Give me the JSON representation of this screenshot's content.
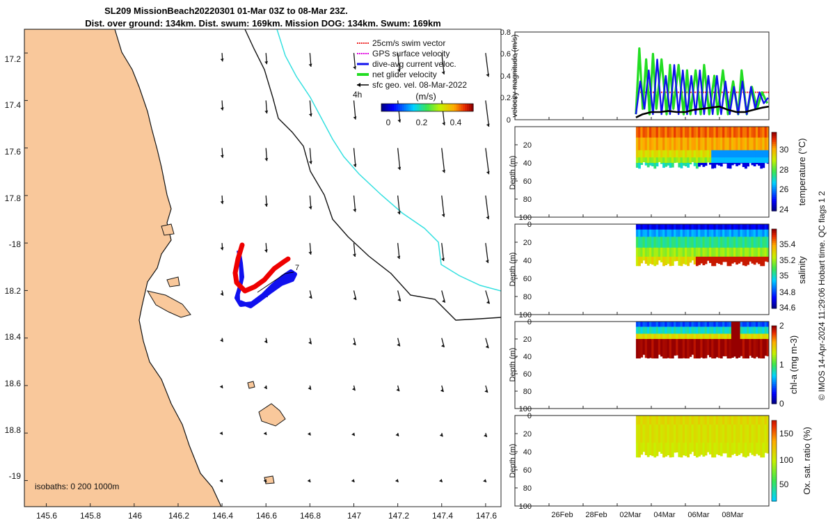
{
  "title": {
    "line1": "SL209 MissionBeach20220301 01-Mar 03Z to 08-Mar 23Z.",
    "line2": "Dist. over ground: 134km. Dist. swum: 169km. Mission DOG: 134km. Swum: 169km"
  },
  "colors": {
    "land": "#f9c89b",
    "coast": "#111111",
    "isobath_200": "#111111",
    "isobath_1000": "#35e0e0",
    "track_blue": "#1010ee",
    "track_red": "#ee0000",
    "legend_red": "#ee2222",
    "legend_magenta": "#e000e0",
    "legend_blue": "#1010ee",
    "legend_green": "#22dd22",
    "legend_black": "#000000"
  },
  "chart_data": [
    {
      "type": "map",
      "name": "glider_track_map",
      "xlim": [
        145.5,
        147.67
      ],
      "ylim": [
        -19.11,
        -17.1
      ],
      "xticks": [
        145.6,
        145.8,
        146,
        146.2,
        146.4,
        146.6,
        146.8,
        147,
        147.2,
        147.4,
        147.6
      ],
      "xtick_labels": [
        "145.6",
        "145.8",
        "146",
        "146.2",
        "146.4",
        "146.6",
        "146.8",
        "147",
        "147.2",
        "147.4",
        "147.6"
      ],
      "yticks": [
        -17.2,
        -17.4,
        -17.6,
        -17.8,
        -18.0,
        -18.2,
        -18.4,
        -18.6,
        -18.8,
        -19.0
      ],
      "ytick_labels": [
        "17.2",
        "17.4",
        "17.6",
        "17.8",
        "-18",
        "18.2",
        "18.4",
        "18.6",
        "18.8",
        "-19"
      ],
      "legend": [
        {
          "label": "25cm/s swim vector",
          "color": "#ee2222"
        },
        {
          "label": "GPS surface velocity",
          "color": "#e000e0"
        },
        {
          "label": "dive-avg current veloc.",
          "color": "#1010ee"
        },
        {
          "label": "net glider velocity",
          "color": "#22dd22"
        },
        {
          "label": "sfc geo. vel. 08-Mar-2022",
          "color": "#000000"
        }
      ],
      "legend_extra": "4h",
      "colorbar": {
        "label": "(m/s)",
        "ticks": [
          0,
          0.2,
          0.4
        ],
        "tick_labels": [
          "0",
          "0.2",
          "0.4"
        ],
        "range": [
          0,
          0.5
        ]
      },
      "isobaths_label": "isobaths: 0   200  1000m",
      "track_end_label": "7"
    },
    {
      "type": "line",
      "name": "velocity_magnitude",
      "ylabel": "velocity magnitude (m/s)",
      "ylim": [
        0,
        0.8
      ],
      "yticks": [
        0,
        0.2,
        0.4,
        0.6,
        0.8
      ],
      "ytick_labels": [
        "0",
        "0.2",
        "0.4",
        "0.6",
        "0.8"
      ],
      "xlim_days": [
        -6,
        8.9
      ],
      "series": [
        {
          "name": "net glider velocity",
          "color": "#22dd22",
          "t": [
            1.1,
            1.3,
            1.5,
            1.7,
            1.9,
            2.1,
            2.3,
            2.6,
            2.9,
            3.1,
            3.3,
            3.6,
            3.9,
            4.1,
            4.3,
            4.6,
            4.9,
            5.1,
            5.4,
            5.7,
            5.9,
            6.2,
            6.5,
            6.8,
            7.1,
            7.3,
            7.6,
            7.9,
            8.2,
            8.5,
            8.8
          ],
          "v": [
            0.05,
            0.65,
            0.1,
            0.55,
            0.05,
            0.6,
            0.1,
            0.55,
            0.05,
            0.5,
            0.1,
            0.5,
            0.05,
            0.45,
            0.05,
            0.45,
            0.05,
            0.5,
            0.05,
            0.4,
            0.05,
            0.45,
            0.05,
            0.35,
            0.05,
            0.45,
            0.05,
            0.3,
            0.1,
            0.25,
            0.15
          ]
        },
        {
          "name": "dive-avg current veloc.",
          "color": "#1010ee",
          "t": [
            1.1,
            1.35,
            1.6,
            1.85,
            2.1,
            2.35,
            2.6,
            2.85,
            3.1,
            3.35,
            3.6,
            3.85,
            4.1,
            4.35,
            4.6,
            4.85,
            5.1,
            5.35,
            5.6,
            5.85,
            6.1,
            6.35,
            6.6,
            6.85,
            7.1,
            7.35,
            7.6,
            7.85,
            8.1,
            8.35,
            8.6,
            8.85
          ],
          "v": [
            0.05,
            0.35,
            0.1,
            0.45,
            0.05,
            0.55,
            0.05,
            0.4,
            0.05,
            0.5,
            0.05,
            0.45,
            0.05,
            0.4,
            0.05,
            0.45,
            0.05,
            0.4,
            0.05,
            0.4,
            0.05,
            0.35,
            0.05,
            0.3,
            0.05,
            0.35,
            0.05,
            0.3,
            0.1,
            0.25,
            0.15,
            0.2
          ]
        },
        {
          "name": "25cm/s swim vector",
          "color": "#ee2222",
          "t": [
            1.1,
            8.9
          ],
          "v": [
            0.25,
            0.25
          ]
        },
        {
          "name": "sfc geo. vel.",
          "color": "#000000",
          "t": [
            1.1,
            1.5,
            2.0,
            2.5,
            3.0,
            3.5,
            4.0,
            4.5,
            5.0,
            5.5,
            6.0,
            6.5,
            7.0,
            7.5,
            8.0,
            8.5,
            8.9
          ],
          "v": [
            0.02,
            0.05,
            0.07,
            0.07,
            0.08,
            0.07,
            0.07,
            0.09,
            0.1,
            0.11,
            0.12,
            0.09,
            0.07,
            0.07,
            0.09,
            0.11,
            0.12
          ]
        }
      ]
    },
    {
      "type": "heatmap",
      "name": "temperature_section",
      "ylabel": "Depth (m)",
      "cbar_label": "temperature (°C)",
      "cbar_range": [
        23.7,
        31.9
      ],
      "cbar_ticks": [
        24,
        26,
        28,
        30
      ],
      "cbar_tick_labels": [
        "24",
        "26",
        "28",
        "30"
      ],
      "yticks": [
        20,
        40,
        60,
        80,
        100
      ],
      "ytick_labels": [
        "20",
        "40",
        "60",
        "80",
        "100"
      ],
      "ylim": [
        0,
        100
      ],
      "data_start_day": 1.1,
      "data_end_day": 8.9,
      "bottom_depth_m": 43,
      "layers": [
        {
          "from": 0,
          "to": 12,
          "value": 30.8
        },
        {
          "from": 12,
          "to": 26,
          "value": 30.2
        },
        {
          "from": 26,
          "to": 34,
          "value": 29.4
        },
        {
          "from": 34,
          "to": 40,
          "value": 28.6
        },
        {
          "from": 40,
          "to": 46,
          "value": 27.2
        }
      ],
      "cool_patch": {
        "from_day": 5.4,
        "to_day": 8.9,
        "top_m": 18,
        "value": 26.2
      },
      "deep_patch": {
        "from_day": 4.7,
        "to_day": 8.9,
        "top_m": 38,
        "value": 24.4
      }
    },
    {
      "type": "heatmap",
      "name": "salinity_section",
      "ylabel": "Depth (m)",
      "cbar_label": "salinity",
      "cbar_range": [
        34.55,
        35.55
      ],
      "cbar_ticks": [
        34.6,
        34.8,
        35,
        35.2,
        35.4
      ],
      "cbar_tick_labels": [
        "34.6",
        "34.8",
        "35",
        "35.2",
        "35.4"
      ],
      "yticks": [
        0,
        20,
        40,
        60,
        80,
        100
      ],
      "ytick_labels": [
        "0",
        "20",
        "40",
        "60",
        "80",
        "100"
      ],
      "ylim": [
        0,
        100
      ],
      "data_start_day": 1.1,
      "data_end_day": 8.9,
      "bottom_depth_m": 44,
      "layers": [
        {
          "from": 0,
          "to": 6,
          "value": 34.65
        },
        {
          "from": 6,
          "to": 14,
          "value": 34.85
        },
        {
          "from": 14,
          "to": 26,
          "value": 35.0
        },
        {
          "from": 26,
          "to": 36,
          "value": 35.15
        },
        {
          "from": 36,
          "to": 46,
          "value": 35.25
        }
      ],
      "salty_patch": {
        "from_day": 4.5,
        "to_day": 8.9,
        "top_m": 30,
        "value": 35.5
      }
    },
    {
      "type": "heatmap",
      "name": "chla_section",
      "ylabel": "Depth (m)",
      "cbar_label": "chl-a (mg m-3)",
      "cbar_range": [
        0,
        2
      ],
      "cbar_ticks": [
        0,
        1,
        2
      ],
      "cbar_tick_labels": [
        "0",
        "1",
        "2"
      ],
      "yticks": [
        0,
        20,
        40,
        60,
        80,
        100
      ],
      "ytick_labels": [
        "0",
        "20",
        "40",
        "60",
        "80",
        "100"
      ],
      "ylim": [
        0,
        100
      ],
      "data_start_day": 1.1,
      "data_end_day": 8.9,
      "bottom_depth_m": 42,
      "layers": [
        {
          "from": 0,
          "to": 6,
          "value": 0.4
        },
        {
          "from": 6,
          "to": 14,
          "value": 0.8
        },
        {
          "from": 14,
          "to": 20,
          "value": 1.4
        },
        {
          "from": 20,
          "to": 42,
          "value": 2.0
        }
      ],
      "spike_patch": {
        "from_day": 6.6,
        "to_day": 7.2,
        "top_m": 0,
        "value": 2.0
      }
    },
    {
      "type": "heatmap",
      "name": "oxygen_section",
      "ylabel": "Depth (m)",
      "cbar_label": "Ox. sat. ratio (%)",
      "cbar_range": [
        22,
        175
      ],
      "cbar_ticks": [
        50,
        100,
        150
      ],
      "cbar_tick_labels": [
        "50",
        "100",
        "150"
      ],
      "yticks": [
        0,
        20,
        40,
        60,
        80,
        100
      ],
      "ytick_labels": [
        "0",
        "20",
        "40",
        "60",
        "80",
        "100"
      ],
      "ylim": [
        0,
        100
      ],
      "data_start_day": 1.1,
      "data_end_day": 8.9,
      "bottom_depth_m": 44,
      "layers": [
        {
          "from": 0,
          "to": 10,
          "value": 112
        },
        {
          "from": 10,
          "to": 30,
          "value": 108
        },
        {
          "from": 30,
          "to": 46,
          "value": 104
        }
      ]
    }
  ],
  "time_axis": {
    "min_day": -6,
    "max_day": 8.9,
    "ticks": [
      -4,
      -2,
      0,
      2,
      4,
      6
    ],
    "tick_labels": [
      "26Feb",
      "28Feb",
      "02Mar",
      "04Mar",
      "06Mar",
      "08Mar"
    ]
  },
  "footer": "© IMOS 14-Apr-2024 11:29:06 Hobart time. QC flags 1  2"
}
